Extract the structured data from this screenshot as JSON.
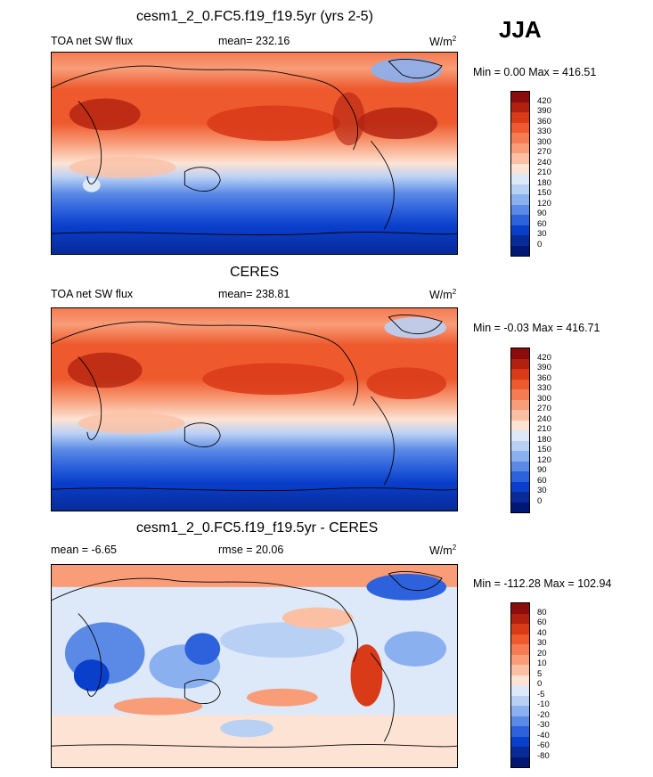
{
  "season": "JJA",
  "panels": [
    {
      "title": "cesm1_2_0.FC5.f19_f19.5yr (yrs 2-5)",
      "left_label": "TOA net SW flux",
      "center_label": "mean= 232.16",
      "units": "W/m",
      "units_sup": "2",
      "minmax": "Min =   0.00 Max = 416.51",
      "levels": [
        "420",
        "390",
        "360",
        "330",
        "300",
        "270",
        "240",
        "210",
        "180",
        "150",
        "120",
        "90",
        "60",
        "30",
        "0"
      ],
      "colors": [
        "#8b0c0c",
        "#b2200f",
        "#d93a18",
        "#ee5a2e",
        "#f57b52",
        "#f89d78",
        "#fbc0a4",
        "#fde3d4",
        "#dde8f8",
        "#b9d0f5",
        "#8ab0ef",
        "#5b8ae6",
        "#2e62dc",
        "#0a3fcc",
        "#082b98",
        "#001873"
      ]
    },
    {
      "title": "CERES",
      "left_label": "TOA net SW flux",
      "center_label": "mean= 238.81",
      "units": "W/m",
      "units_sup": "2",
      "minmax": "Min =  -0.03 Max = 416.71",
      "levels": [
        "420",
        "390",
        "360",
        "330",
        "300",
        "270",
        "240",
        "210",
        "180",
        "150",
        "120",
        "90",
        "60",
        "30",
        "0"
      ],
      "colors": [
        "#8b0c0c",
        "#b2200f",
        "#d93a18",
        "#ee5a2e",
        "#f57b52",
        "#f89d78",
        "#fbc0a4",
        "#fde3d4",
        "#dde8f8",
        "#b9d0f5",
        "#8ab0ef",
        "#5b8ae6",
        "#2e62dc",
        "#0a3fcc",
        "#082b98",
        "#001873"
      ]
    },
    {
      "title": "cesm1_2_0.FC5.f19_f19.5yr - CERES",
      "left_label": "mean =  -6.65",
      "center_label": "rmse =  20.06",
      "units": "W/m",
      "units_sup": "2",
      "minmax": "Min = -112.28 Max = 102.94",
      "levels": [
        "80",
        "60",
        "40",
        "30",
        "20",
        "10",
        "5",
        "0",
        "-5",
        "-10",
        "-20",
        "-30",
        "-40",
        "-60",
        "-80"
      ],
      "colors": [
        "#8b0c0c",
        "#b2200f",
        "#d93a18",
        "#ee5a2e",
        "#f57b52",
        "#f89d78",
        "#fbc0a4",
        "#fde3d4",
        "#dde8f8",
        "#b9d0f5",
        "#8ab0ef",
        "#5b8ae6",
        "#2e62dc",
        "#0a3fcc",
        "#082b98",
        "#001873"
      ]
    }
  ]
}
